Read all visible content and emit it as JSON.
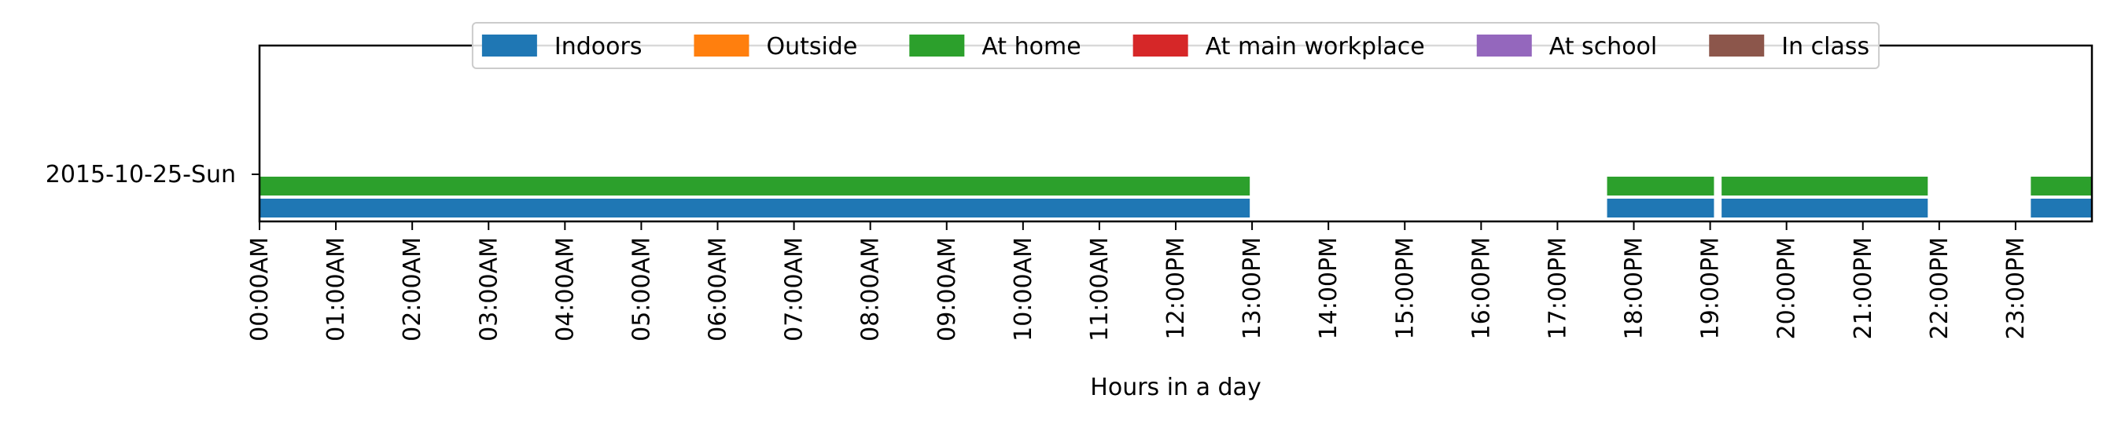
{
  "chart_data": {
    "type": "timeline",
    "title": "",
    "xlabel": "Hours in a day",
    "ylabel": "",
    "xlim": [
      0,
      24
    ],
    "x_tick_labels": [
      "00:00AM",
      "01:00AM",
      "02:00AM",
      "03:00AM",
      "04:00AM",
      "05:00AM",
      "06:00AM",
      "07:00AM",
      "08:00AM",
      "09:00AM",
      "10:00AM",
      "11:00AM",
      "12:00PM",
      "13:00PM",
      "14:00PM",
      "15:00PM",
      "16:00PM",
      "17:00PM",
      "18:00PM",
      "19:00PM",
      "20:00PM",
      "21:00PM",
      "22:00PM",
      "23:00PM"
    ],
    "categories": [
      "2015-10-25-Sun"
    ],
    "grid": false,
    "legend_position": "top-center",
    "series": [
      {
        "name": "Indoors",
        "color": "#1f77b4",
        "intervals": [
          [
            0,
            12.97
          ],
          [
            17.65,
            19.05
          ],
          [
            19.15,
            21.85
          ],
          [
            23.2,
            24
          ]
        ]
      },
      {
        "name": "Outside",
        "color": "#ff7f0e",
        "intervals": []
      },
      {
        "name": "At home",
        "color": "#2ca02c",
        "intervals": [
          [
            0,
            12.97
          ],
          [
            17.65,
            19.05
          ],
          [
            19.15,
            21.85
          ],
          [
            23.2,
            24
          ]
        ]
      },
      {
        "name": "At main workplace",
        "color": "#d62728",
        "intervals": []
      },
      {
        "name": "At school",
        "color": "#9467bd",
        "intervals": []
      },
      {
        "name": "In class",
        "color": "#8c564b",
        "intervals": []
      }
    ]
  }
}
